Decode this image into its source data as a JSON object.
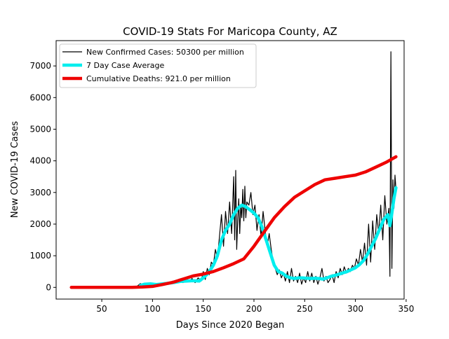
{
  "chart_data": {
    "type": "line",
    "title": "COVID-19 Stats For Maricopa County, AZ",
    "xlabel": "Days Since 2020 Began",
    "ylabel": "New COVID-19 Cases",
    "xlim": [
      5,
      348
    ],
    "ylim": [
      -370,
      7800
    ],
    "xticks": [
      50,
      100,
      150,
      200,
      250,
      300,
      350
    ],
    "yticks": [
      0,
      1000,
      2000,
      3000,
      4000,
      5000,
      6000,
      7000
    ],
    "grid": false,
    "legend_position": "top-left",
    "series": [
      {
        "name": "New Confirmed Cases: 50300 per million",
        "color": "#000000",
        "style": "thin",
        "points": [
          [
            20,
            0
          ],
          [
            40,
            0
          ],
          [
            60,
            0
          ],
          [
            80,
            0
          ],
          [
            85,
            40
          ],
          [
            88,
            120
          ],
          [
            92,
            60
          ],
          [
            96,
            130
          ],
          [
            100,
            80
          ],
          [
            104,
            120
          ],
          [
            108,
            60
          ],
          [
            112,
            150
          ],
          [
            116,
            110
          ],
          [
            120,
            200
          ],
          [
            124,
            150
          ],
          [
            127,
            260
          ],
          [
            130,
            150
          ],
          [
            133,
            300
          ],
          [
            136,
            180
          ],
          [
            139,
            280
          ],
          [
            142,
            150
          ],
          [
            145,
            300
          ],
          [
            148,
            200
          ],
          [
            150,
            500
          ],
          [
            152,
            250
          ],
          [
            154,
            600
          ],
          [
            156,
            400
          ],
          [
            158,
            800
          ],
          [
            160,
            700
          ],
          [
            162,
            1200
          ],
          [
            164,
            900
          ],
          [
            166,
            1600
          ],
          [
            168,
            2300
          ],
          [
            170,
            1300
          ],
          [
            172,
            2400
          ],
          [
            174,
            1700
          ],
          [
            176,
            2700
          ],
          [
            178,
            1700
          ],
          [
            180,
            3500
          ],
          [
            181,
            1500
          ],
          [
            182,
            3700
          ],
          [
            183,
            1200
          ],
          [
            184,
            2100
          ],
          [
            185,
            2800
          ],
          [
            186,
            1700
          ],
          [
            187,
            2600
          ],
          [
            188,
            2200
          ],
          [
            189,
            3100
          ],
          [
            190,
            2100
          ],
          [
            191,
            3200
          ],
          [
            192,
            2200
          ],
          [
            193,
            2700
          ],
          [
            195,
            2600
          ],
          [
            197,
            3000
          ],
          [
            199,
            2300
          ],
          [
            201,
            2600
          ],
          [
            203,
            1800
          ],
          [
            205,
            2300
          ],
          [
            207,
            1600
          ],
          [
            209,
            2400
          ],
          [
            211,
            1800
          ],
          [
            213,
            1300
          ],
          [
            215,
            1700
          ],
          [
            217,
            1200
          ],
          [
            219,
            800
          ],
          [
            221,
            600
          ],
          [
            223,
            400
          ],
          [
            225,
            550
          ],
          [
            227,
            300
          ],
          [
            229,
            450
          ],
          [
            231,
            200
          ],
          [
            233,
            500
          ],
          [
            235,
            150
          ],
          [
            237,
            600
          ],
          [
            239,
            200
          ],
          [
            241,
            350
          ],
          [
            243,
            150
          ],
          [
            245,
            450
          ],
          [
            247,
            100
          ],
          [
            249,
            300
          ],
          [
            251,
            150
          ],
          [
            253,
            500
          ],
          [
            255,
            200
          ],
          [
            257,
            450
          ],
          [
            259,
            150
          ],
          [
            261,
            350
          ],
          [
            263,
            100
          ],
          [
            265,
            300
          ],
          [
            267,
            600
          ],
          [
            269,
            200
          ],
          [
            271,
            350
          ],
          [
            273,
            150
          ],
          [
            275,
            250
          ],
          [
            277,
            400
          ],
          [
            279,
            150
          ],
          [
            281,
            500
          ],
          [
            283,
            300
          ],
          [
            285,
            600
          ],
          [
            287,
            400
          ],
          [
            289,
            650
          ],
          [
            291,
            450
          ],
          [
            293,
            600
          ],
          [
            295,
            500
          ],
          [
            297,
            700
          ],
          [
            299,
            600
          ],
          [
            301,
            900
          ],
          [
            303,
            700
          ],
          [
            305,
            1200
          ],
          [
            307,
            800
          ],
          [
            309,
            1400
          ],
          [
            311,
            700
          ],
          [
            313,
            2000
          ],
          [
            315,
            800
          ],
          [
            317,
            2100
          ],
          [
            319,
            1200
          ],
          [
            321,
            2300
          ],
          [
            323,
            1700
          ],
          [
            325,
            2600
          ],
          [
            327,
            1500
          ],
          [
            329,
            2900
          ],
          [
            331,
            2000
          ],
          [
            333,
            2500
          ],
          [
            334,
            350
          ],
          [
            335,
            7450
          ],
          [
            336,
            600
          ],
          [
            337,
            3400
          ],
          [
            338,
            2500
          ],
          [
            339,
            3550
          ],
          [
            340,
            3100
          ]
        ]
      },
      {
        "name": "7 Day Case Average",
        "color": "#00eeee",
        "style": "thick",
        "points": [
          [
            88,
            60
          ],
          [
            92,
            100
          ],
          [
            98,
            110
          ],
          [
            104,
            90
          ],
          [
            110,
            110
          ],
          [
            116,
            130
          ],
          [
            122,
            160
          ],
          [
            128,
            190
          ],
          [
            134,
            200
          ],
          [
            140,
            210
          ],
          [
            146,
            200
          ],
          [
            150,
            300
          ],
          [
            155,
            450
          ],
          [
            160,
            700
          ],
          [
            164,
            1000
          ],
          [
            168,
            1500
          ],
          [
            172,
            1800
          ],
          [
            176,
            2000
          ],
          [
            180,
            2300
          ],
          [
            184,
            2500
          ],
          [
            188,
            2600
          ],
          [
            192,
            2550
          ],
          [
            196,
            2450
          ],
          [
            200,
            2350
          ],
          [
            204,
            2200
          ],
          [
            208,
            1900
          ],
          [
            212,
            1500
          ],
          [
            216,
            1100
          ],
          [
            220,
            700
          ],
          [
            224,
            500
          ],
          [
            228,
            450
          ],
          [
            232,
            350
          ],
          [
            236,
            300
          ],
          [
            240,
            280
          ],
          [
            244,
            300
          ],
          [
            248,
            300
          ],
          [
            252,
            290
          ],
          [
            256,
            280
          ],
          [
            260,
            290
          ],
          [
            264,
            280
          ],
          [
            268,
            260
          ],
          [
            272,
            300
          ],
          [
            276,
            350
          ],
          [
            280,
            380
          ],
          [
            284,
            420
          ],
          [
            288,
            460
          ],
          [
            292,
            500
          ],
          [
            296,
            560
          ],
          [
            300,
            620
          ],
          [
            304,
            720
          ],
          [
            308,
            850
          ],
          [
            312,
            1050
          ],
          [
            316,
            1300
          ],
          [
            320,
            1550
          ],
          [
            324,
            1850
          ],
          [
            328,
            2150
          ],
          [
            332,
            2300
          ],
          [
            334,
            1950
          ],
          [
            336,
            2350
          ],
          [
            338,
            2800
          ],
          [
            340,
            3150
          ]
        ]
      },
      {
        "name": "Cumulative Deaths: 921.0 per million",
        "color": "#ee0000",
        "style": "thick",
        "points": [
          [
            20,
            0
          ],
          [
            40,
            0
          ],
          [
            60,
            0
          ],
          [
            80,
            0
          ],
          [
            90,
            10
          ],
          [
            100,
            30
          ],
          [
            110,
            90
          ],
          [
            120,
            160
          ],
          [
            130,
            260
          ],
          [
            140,
            360
          ],
          [
            150,
            420
          ],
          [
            160,
            500
          ],
          [
            170,
            620
          ],
          [
            180,
            750
          ],
          [
            190,
            900
          ],
          [
            200,
            1300
          ],
          [
            210,
            1750
          ],
          [
            220,
            2200
          ],
          [
            230,
            2550
          ],
          [
            240,
            2850
          ],
          [
            250,
            3050
          ],
          [
            260,
            3250
          ],
          [
            270,
            3400
          ],
          [
            280,
            3450
          ],
          [
            290,
            3500
          ],
          [
            300,
            3550
          ],
          [
            310,
            3650
          ],
          [
            320,
            3800
          ],
          [
            330,
            3950
          ],
          [
            340,
            4130
          ]
        ]
      }
    ]
  }
}
